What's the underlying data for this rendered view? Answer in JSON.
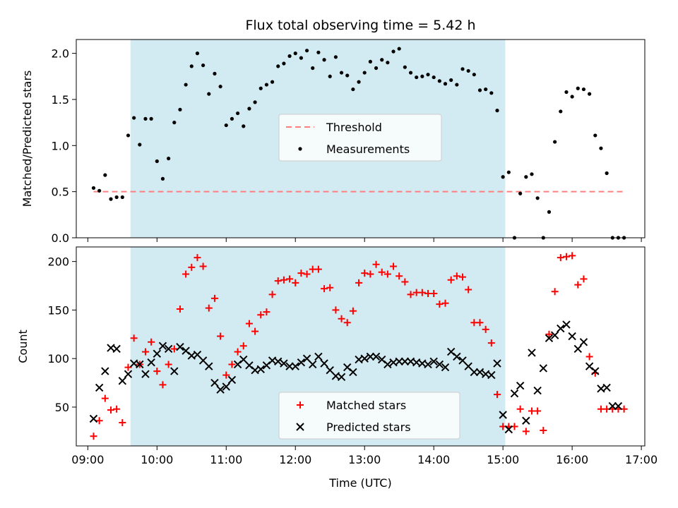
{
  "chart_data": [
    {
      "type": "scatter",
      "title": "Flux total observing time = 5.42 h",
      "xlabel": "",
      "ylabel": "Matched/Predicted stars",
      "xlim": [
        "09:00",
        "17:00"
      ],
      "ylim": [
        0,
        2.15
      ],
      "yticks": [
        "0.0",
        "0.5",
        "1.0",
        "1.5",
        "2.0"
      ],
      "shaded_interval": [
        "09:37",
        "15:02"
      ],
      "shaded_color": "#add8e6",
      "legend_position": "center",
      "series": [
        {
          "name": "Threshold",
          "style": "dashed-line",
          "color": "#ff7f7f",
          "x": [
            "09:05",
            "16:45"
          ],
          "values": [
            0.5,
            0.5
          ]
        },
        {
          "name": "Measurements",
          "style": "dot",
          "color": "#000000",
          "x": [
            "09:05",
            "09:10",
            "09:15",
            "09:20",
            "09:25",
            "09:30",
            "09:35",
            "09:40",
            "09:45",
            "09:50",
            "09:55",
            "10:00",
            "10:05",
            "10:10",
            "10:15",
            "10:20",
            "10:25",
            "10:30",
            "10:35",
            "10:40",
            "10:45",
            "10:50",
            "10:55",
            "11:00",
            "11:05",
            "11:10",
            "11:15",
            "11:20",
            "11:25",
            "11:30",
            "11:35",
            "11:40",
            "11:45",
            "11:50",
            "11:55",
            "12:00",
            "12:05",
            "12:10",
            "12:15",
            "12:20",
            "12:25",
            "12:30",
            "12:35",
            "12:40",
            "12:45",
            "12:50",
            "12:55",
            "13:00",
            "13:05",
            "13:10",
            "13:15",
            "13:20",
            "13:25",
            "13:30",
            "13:35",
            "13:40",
            "13:45",
            "13:50",
            "13:55",
            "14:00",
            "14:05",
            "14:10",
            "14:15",
            "14:20",
            "14:25",
            "14:30",
            "14:35",
            "14:40",
            "14:45",
            "14:50",
            "14:55",
            "15:00",
            "15:05",
            "15:10",
            "15:15",
            "15:20",
            "15:25",
            "15:30",
            "15:35",
            "15:40",
            "15:45",
            "15:50",
            "15:55",
            "16:00",
            "16:05",
            "16:10",
            "16:15",
            "16:20",
            "16:25",
            "16:30",
            "16:35",
            "16:40",
            "16:45"
          ],
          "values": [
            0.54,
            0.51,
            0.68,
            0.42,
            0.44,
            0.44,
            1.11,
            1.3,
            1.01,
            1.29,
            1.29,
            0.83,
            0.64,
            0.86,
            1.25,
            1.39,
            1.66,
            1.86,
            2.0,
            1.87,
            1.56,
            1.78,
            1.64,
            1.22,
            1.29,
            1.35,
            1.21,
            1.4,
            1.47,
            1.62,
            1.66,
            1.69,
            1.86,
            1.89,
            1.97,
            2.0,
            1.95,
            2.03,
            1.84,
            2.01,
            1.93,
            1.75,
            1.96,
            1.79,
            1.76,
            1.61,
            1.69,
            1.79,
            1.91,
            1.84,
            1.93,
            1.9,
            2.02,
            2.05,
            1.85,
            1.79,
            1.74,
            1.75,
            1.77,
            1.74,
            1.7,
            1.67,
            1.71,
            1.66,
            1.83,
            1.81,
            1.77,
            1.6,
            1.61,
            1.57,
            1.38,
            0.66,
            0.71,
            0.0,
            0.48,
            0.66,
            0.69,
            0.43,
            0.0,
            0.28,
            1.04,
            1.37,
            1.58,
            1.53,
            1.62,
            1.61,
            1.56,
            1.11,
            0.97,
            0.7,
            0.0,
            0.0,
            0.0
          ]
        }
      ]
    },
    {
      "type": "scatter",
      "title": "",
      "xlabel": "Time (UTC)",
      "ylabel": "Count",
      "xlim": [
        "09:00",
        "17:00"
      ],
      "ylim": [
        10,
        215
      ],
      "xticks": [
        "09:00",
        "10:00",
        "11:00",
        "12:00",
        "13:00",
        "14:00",
        "15:00",
        "16:00",
        "17:00"
      ],
      "yticks": [
        "50",
        "100",
        "150",
        "200"
      ],
      "shaded_interval": [
        "09:37",
        "15:02"
      ],
      "shaded_color": "#add8e6",
      "legend_position": "lower center",
      "series": [
        {
          "name": "Matched stars",
          "style": "plus",
          "color": "#ff0000",
          "x": [
            "09:05",
            "09:10",
            "09:15",
            "09:20",
            "09:25",
            "09:30",
            "09:35",
            "09:40",
            "09:45",
            "09:50",
            "09:55",
            "10:00",
            "10:05",
            "10:10",
            "10:15",
            "10:20",
            "10:25",
            "10:30",
            "10:35",
            "10:40",
            "10:45",
            "10:50",
            "10:55",
            "11:00",
            "11:05",
            "11:10",
            "11:15",
            "11:20",
            "11:25",
            "11:30",
            "11:35",
            "11:40",
            "11:45",
            "11:50",
            "11:55",
            "12:00",
            "12:05",
            "12:10",
            "12:15",
            "12:20",
            "12:25",
            "12:30",
            "12:35",
            "12:40",
            "12:45",
            "12:50",
            "12:55",
            "13:00",
            "13:05",
            "13:10",
            "13:15",
            "13:20",
            "13:25",
            "13:30",
            "13:35",
            "13:40",
            "13:45",
            "13:50",
            "13:55",
            "14:00",
            "14:05",
            "14:10",
            "14:15",
            "14:20",
            "14:25",
            "14:30",
            "14:35",
            "14:40",
            "14:45",
            "14:50",
            "14:55",
            "15:00",
            "15:05",
            "15:10",
            "15:15",
            "15:20",
            "15:25",
            "15:30",
            "15:35",
            "15:40",
            "15:45",
            "15:50",
            "15:55",
            "16:00",
            "16:05",
            "16:10",
            "16:15",
            "16:20",
            "16:25",
            "16:30",
            "16:35",
            "16:40",
            "16:45"
          ],
          "values": [
            20,
            36,
            59,
            47,
            48,
            34,
            91,
            121,
            94,
            107,
            117,
            87,
            73,
            94,
            110,
            151,
            187,
            194,
            204,
            195,
            152,
            162,
            123,
            83,
            94,
            107,
            113,
            136,
            128,
            145,
            148,
            166,
            180,
            181,
            182,
            178,
            188,
            187,
            192,
            192,
            172,
            173,
            150,
            141,
            137,
            149,
            178,
            188,
            187,
            197,
            189,
            187,
            195,
            185,
            179,
            166,
            168,
            168,
            167,
            167,
            156,
            157,
            181,
            185,
            184,
            171,
            137,
            137,
            130,
            116,
            63,
            30,
            30,
            30,
            48,
            25,
            46,
            46,
            26,
            125,
            169,
            204,
            205,
            206,
            176,
            182,
            102,
            85,
            48,
            48,
            48,
            48,
            48
          ]
        },
        {
          "name": "Predicted stars",
          "style": "x",
          "color": "#000000",
          "x": [
            "09:05",
            "09:10",
            "09:15",
            "09:20",
            "09:25",
            "09:30",
            "09:35",
            "09:40",
            "09:45",
            "09:50",
            "09:55",
            "10:00",
            "10:05",
            "10:10",
            "10:15",
            "10:20",
            "10:25",
            "10:30",
            "10:35",
            "10:40",
            "10:45",
            "10:50",
            "10:55",
            "11:00",
            "11:05",
            "11:10",
            "11:15",
            "11:20",
            "11:25",
            "11:30",
            "11:35",
            "11:40",
            "11:45",
            "11:50",
            "11:55",
            "12:00",
            "12:05",
            "12:10",
            "12:15",
            "12:20",
            "12:25",
            "12:30",
            "12:35",
            "12:40",
            "12:45",
            "12:50",
            "12:55",
            "13:00",
            "13:05",
            "13:10",
            "13:15",
            "13:20",
            "13:25",
            "13:30",
            "13:35",
            "13:40",
            "13:45",
            "13:50",
            "13:55",
            "14:00",
            "14:05",
            "14:10",
            "14:15",
            "14:20",
            "14:25",
            "14:30",
            "14:35",
            "14:40",
            "14:45",
            "14:50",
            "14:55",
            "15:00",
            "15:05",
            "15:10",
            "15:15",
            "15:20",
            "15:25",
            "15:30",
            "15:35",
            "15:40",
            "15:45",
            "15:50",
            "15:55",
            "16:00",
            "16:05",
            "16:10",
            "16:15",
            "16:20",
            "16:25",
            "16:30",
            "16:35",
            "16:40"
          ],
          "values": [
            38,
            70,
            87,
            111,
            110,
            77,
            84,
            95,
            94,
            84,
            96,
            105,
            113,
            110,
            87,
            112,
            108,
            103,
            104,
            98,
            92,
            75,
            68,
            71,
            78,
            94,
            99,
            93,
            88,
            89,
            93,
            98,
            97,
            95,
            92,
            92,
            96,
            100,
            94,
            102,
            95,
            88,
            82,
            81,
            91,
            86,
            99,
            100,
            102,
            102,
            99,
            94,
            96,
            97,
            97,
            97,
            96,
            95,
            94,
            97,
            94,
            91,
            107,
            102,
            98,
            92,
            86,
            86,
            84,
            83,
            95,
            42,
            27,
            64,
            72,
            36,
            106,
            67,
            90,
            121,
            124,
            131,
            135,
            123,
            110,
            117,
            92,
            87,
            69,
            70,
            51,
            51
          ]
        }
      ]
    }
  ]
}
